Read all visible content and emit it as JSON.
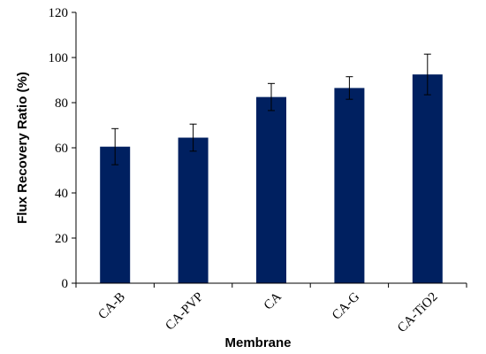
{
  "chart_data": {
    "type": "bar",
    "categories": [
      "CA-B",
      "CA-PVP",
      "CA",
      "CA-G",
      "CA-TiO2"
    ],
    "category_labels": [
      "CA-B",
      "CA-PVP",
      "CA",
      "CA-G",
      "CA-TiO2"
    ],
    "values": [
      60.5,
      64.5,
      82.5,
      86.5,
      92.5
    ],
    "error": [
      8,
      6,
      6,
      5,
      9
    ],
    "xlabel": "Membrane",
    "ylabel": "Flux Recovery Ratio (%)",
    "ylim": [
      0,
      120
    ],
    "yticks": [
      0,
      20,
      40,
      60,
      80,
      100,
      120
    ],
    "ytick_labels": [
      "0",
      "20",
      "40",
      "60",
      "80",
      "100",
      "120"
    ],
    "bar_color": "#002060",
    "grid": false,
    "legend": "none"
  }
}
